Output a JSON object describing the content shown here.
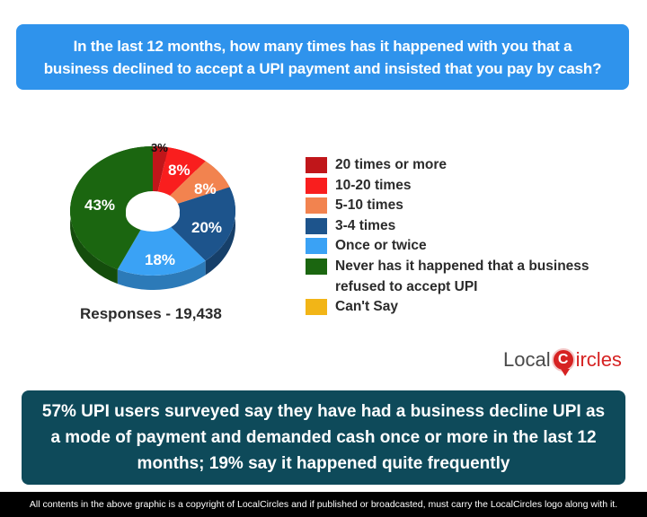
{
  "question": "In the last 12 months, how many times has it happened with you that a business declined to accept a UPI payment and insisted that you pay by cash?",
  "responses": "Responses - 19,438",
  "takeaway": "57% UPI users surveyed say they have had a business decline UPI as a mode of payment and demanded cash once or more in the last 12 months; 19% say it happened quite frequently",
  "footer": "All contents in the above graphic is a copyright of LocalCircles and if published or broadcasted, must carry the LocalCircles logo along with it.",
  "logo": {
    "part1": "Local",
    "pin": "C",
    "part2": "ircles"
  },
  "legend": [
    {
      "label": "20 times or more",
      "color": "#c0161a"
    },
    {
      "label": "10-20 times",
      "color": "#f91e1e"
    },
    {
      "label": "5-10 times",
      "color": "#f2834f"
    },
    {
      "label": "3-4 times",
      "color": "#1d548c"
    },
    {
      "label": "Once or twice",
      "color": "#3aa2f5"
    },
    {
      "label": "Never has it happened that a business refused to accept UPI",
      "color": "#1b6610"
    },
    {
      "label": "Can't Say",
      "color": "#f2b517"
    }
  ],
  "pie_labels": [
    "3%",
    "8%",
    "8%",
    "20%",
    "18%",
    "43%"
  ],
  "chart_data": {
    "type": "pie",
    "style": "3d-donut",
    "title": "In the last 12 months, how many times has it happened with you that a business declined to accept a UPI payment and insisted that you pay by cash?",
    "categories": [
      "20 times or more",
      "10-20 times",
      "5-10 times",
      "3-4 times",
      "Once or twice",
      "Never has it happened that a business refused to accept UPI",
      "Can't Say"
    ],
    "values": [
      3,
      8,
      8,
      20,
      18,
      43,
      0
    ],
    "colors": [
      "#c0161a",
      "#f91e1e",
      "#f2834f",
      "#1d548c",
      "#3aa2f5",
      "#1b6610",
      "#f2b517"
    ],
    "unit": "%",
    "total_responses": 19438,
    "legend_position": "right"
  }
}
